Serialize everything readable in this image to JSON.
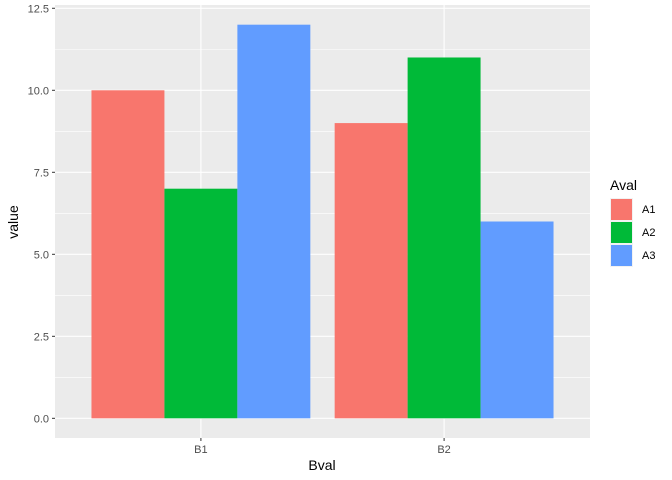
{
  "chart_data": {
    "type": "bar",
    "categories": [
      "B1",
      "B2"
    ],
    "series": [
      {
        "name": "A1",
        "values": [
          10,
          9
        ],
        "color": "#F8766D"
      },
      {
        "name": "A2",
        "values": [
          7,
          11
        ],
        "color": "#00BA38"
      },
      {
        "name": "A3",
        "values": [
          12,
          6
        ],
        "color": "#619CFF"
      }
    ],
    "xlabel": "Bval",
    "ylabel": "value",
    "ylim": [
      -0.6,
      12.6
    ],
    "yticks": [
      0,
      2.5,
      5,
      7.5,
      10,
      12.5
    ],
    "ytick_labels": [
      "0.0",
      "2.5",
      "5.0",
      "7.5",
      "10.0",
      "12.5"
    ],
    "legend_title": "Aval",
    "legend_position": "right",
    "grid": true,
    "panel_background": "#EBEBEB",
    "grid_color": "#FFFFFF"
  }
}
